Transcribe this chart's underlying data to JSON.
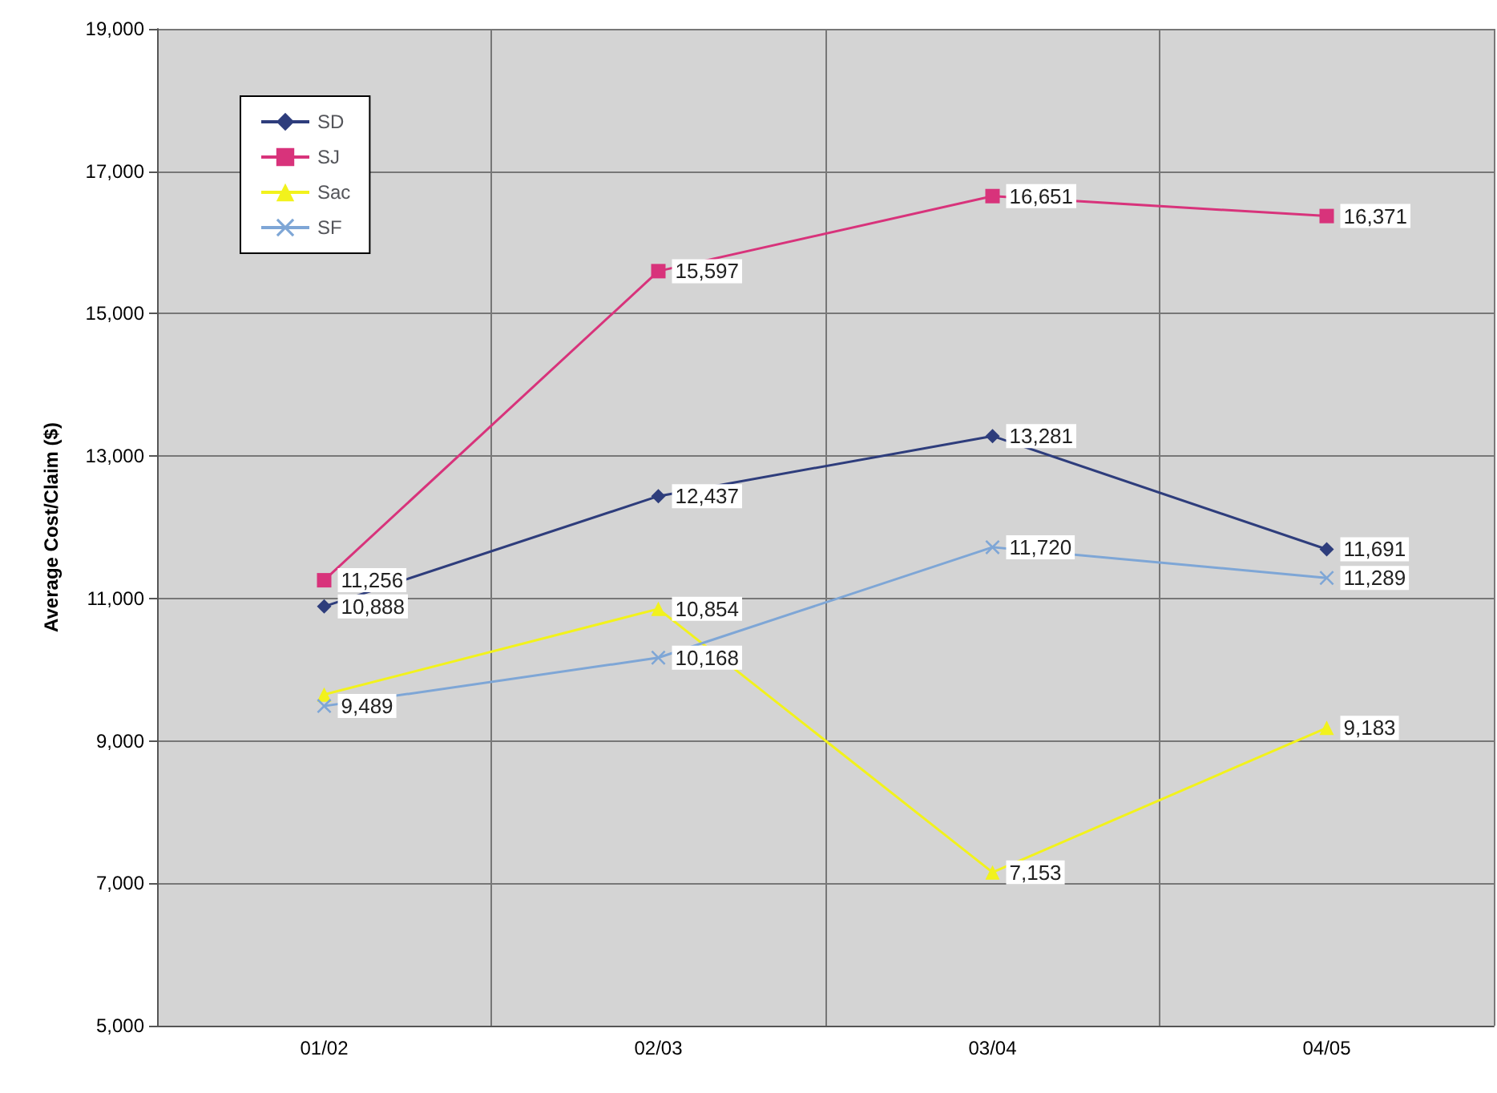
{
  "chart_data": {
    "type": "line",
    "ylabel": "Average Cost/Claim ($)",
    "categories": [
      "01/02",
      "02/03",
      "03/04",
      "04/05"
    ],
    "series": [
      {
        "name": "SD",
        "color": "#2e3d7c",
        "marker": "diamond",
        "values": [
          10888,
          12437,
          13281,
          11691
        ],
        "value_labels": [
          "10,888",
          "12,437",
          "13,281",
          "11,691"
        ]
      },
      {
        "name": "SJ",
        "color": "#d8337b",
        "marker": "square",
        "values": [
          11256,
          15597,
          16651,
          16371
        ],
        "value_labels": [
          "11,256",
          "15,597",
          "16,651",
          "16,371"
        ]
      },
      {
        "name": "Sac",
        "color": "#f2f21c",
        "marker": "triangle",
        "values": [
          9650,
          10854,
          7153,
          9183
        ],
        "value_labels": [
          null,
          "10,854",
          "7,153",
          "9,183"
        ]
      },
      {
        "name": "SF",
        "color": "#7ea6d6",
        "marker": "cross",
        "values": [
          9489,
          10168,
          11720,
          11289
        ],
        "value_labels": [
          "9,489",
          "10,168",
          "11,720",
          "11,289"
        ]
      }
    ],
    "ylim": [
      5000,
      19000
    ],
    "yticks": [
      {
        "value": 5000,
        "label": "5,000"
      },
      {
        "value": 7000,
        "label": "7,000"
      },
      {
        "value": 9000,
        "label": "9,000"
      },
      {
        "value": 11000,
        "label": "11,000"
      },
      {
        "value": 13000,
        "label": "13,000"
      },
      {
        "value": 15000,
        "label": "15,000"
      },
      {
        "value": 17000,
        "label": "17,000"
      },
      {
        "value": 19000,
        "label": "19,000"
      }
    ],
    "grid": true,
    "legend": "top left"
  }
}
